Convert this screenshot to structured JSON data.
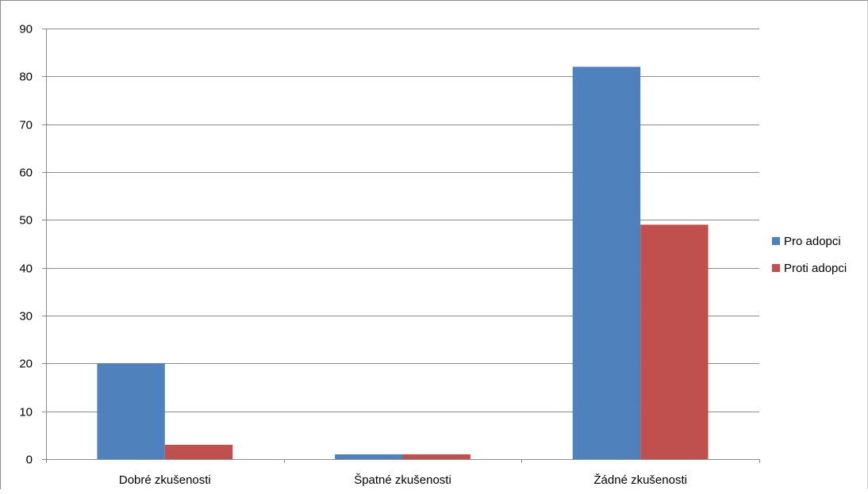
{
  "chart_data": {
    "type": "bar",
    "categories": [
      "Dobré zkušenosti",
      "Špatné zkušenosti",
      "Žádné zkušenosti"
    ],
    "series": [
      {
        "name": "Pro adopci",
        "values": [
          20,
          1,
          82
        ],
        "color": "#4F81BD"
      },
      {
        "name": "Proti adopci",
        "values": [
          3,
          1,
          49
        ],
        "color": "#C0504D"
      }
    ],
    "title": "",
    "xlabel": "",
    "ylabel": "",
    "ylim": [
      0,
      90
    ],
    "yticks": [
      0,
      10,
      20,
      30,
      40,
      50,
      60,
      70,
      80,
      90
    ],
    "grid": true,
    "legend_position": "right"
  }
}
